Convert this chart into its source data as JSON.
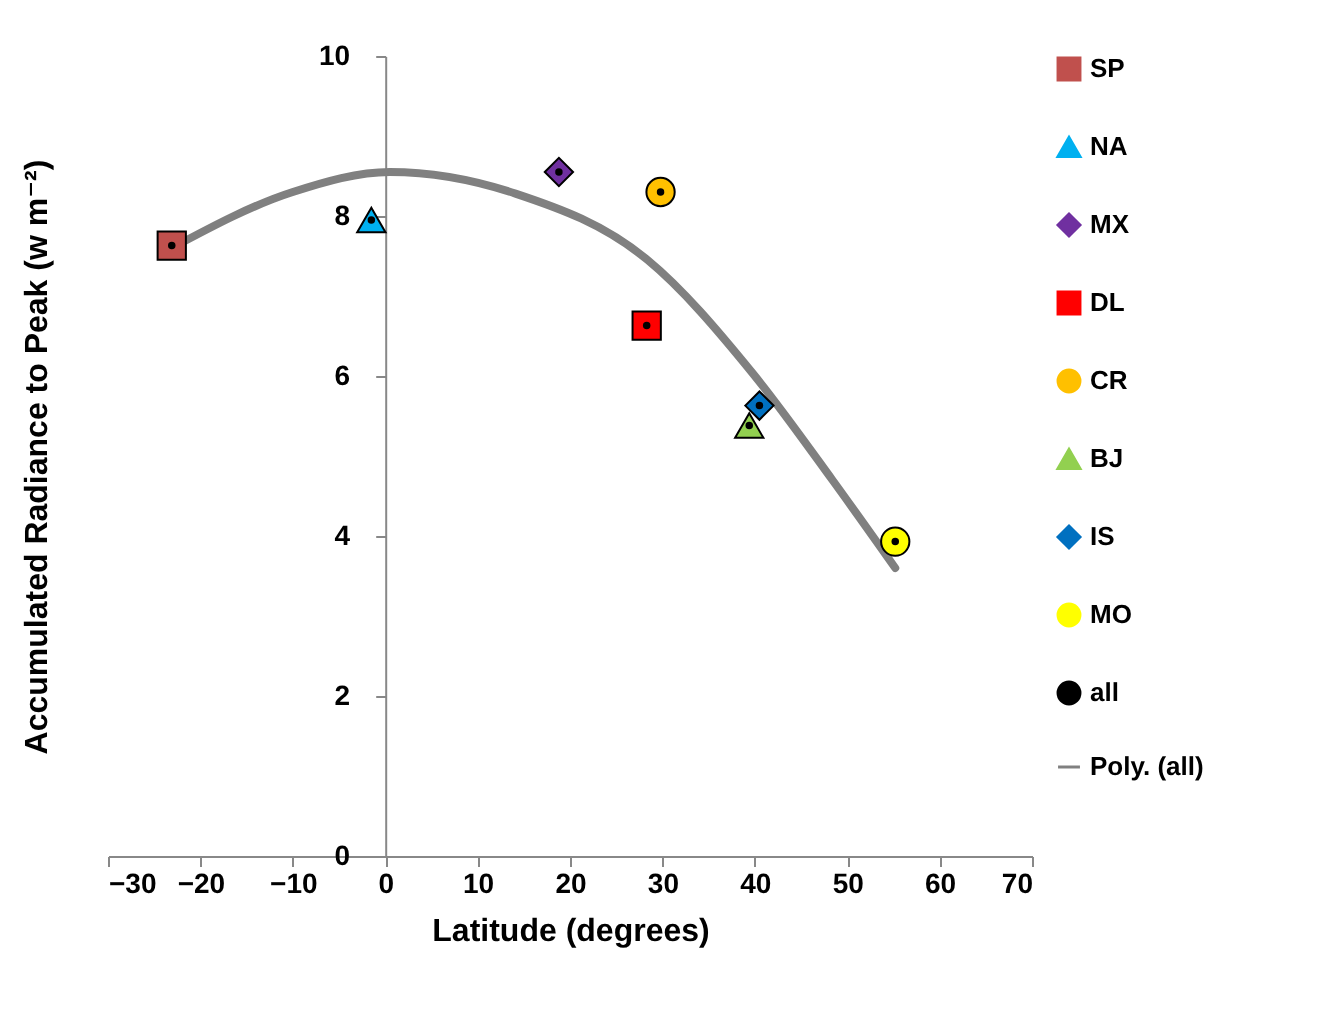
{
  "chart_data": {
    "type": "scatter",
    "xlabel": "Latitude (degrees)",
    "ylabel": "Accumulated Radiance to Peak (w m⁻²)",
    "xlim": [
      -30,
      70
    ],
    "xticks": [
      -30,
      -20,
      -10,
      0,
      10,
      20,
      30,
      40,
      50,
      60,
      70
    ],
    "ylim": [
      0,
      10
    ],
    "yticks": [
      0,
      2,
      4,
      6,
      8,
      10
    ],
    "grid": false,
    "legend": "right",
    "series": [
      {
        "name": "SP",
        "color": "#c0504d",
        "marker": "square",
        "x": [
          -23.1
        ],
        "values": [
          7.63
        ]
      },
      {
        "name": "NA",
        "color": "#00b0f0",
        "marker": "triangle",
        "x": [
          -1.5
        ],
        "values": [
          7.95
        ]
      },
      {
        "name": "MX",
        "color": "#7030a0",
        "marker": "diamond",
        "x": [
          18.8
        ],
        "values": [
          8.55
        ]
      },
      {
        "name": "DL",
        "color": "#ff0000",
        "marker": "square",
        "x": [
          28.3
        ],
        "values": [
          6.63
        ]
      },
      {
        "name": "CR",
        "color": "#ffc000",
        "marker": "circle",
        "x": [
          29.8
        ],
        "values": [
          8.3
        ]
      },
      {
        "name": "BJ",
        "color": "#92d050",
        "marker": "triangle",
        "x": [
          39.4
        ],
        "values": [
          5.38
        ]
      },
      {
        "name": "IS",
        "color": "#0070c0",
        "marker": "diamond",
        "x": [
          40.5
        ],
        "values": [
          5.63
        ]
      },
      {
        "name": "MO",
        "color": "#ffff00",
        "marker": "circle",
        "x": [
          55.2
        ],
        "values": [
          3.93
        ]
      },
      {
        "name": "all",
        "color": "#000000",
        "marker": "circle",
        "x": [
          -23.1,
          -1.5,
          18.8,
          28.3,
          29.8,
          39.4,
          40.5,
          55.2
        ],
        "values": [
          7.63,
          7.95,
          8.55,
          6.63,
          8.3,
          5.38,
          5.63,
          3.93
        ]
      },
      {
        "name": "Poly. (all)",
        "type": "line",
        "color": "#808080",
        "marker": "none",
        "x": [
          -23.1,
          -10,
          0.5,
          14.1,
          28.4,
          39.8,
          48.4,
          55.2
        ],
        "values": [
          7.6,
          8.3,
          8.55,
          8.28,
          7.45,
          6.03,
          4.7,
          3.6
        ]
      }
    ]
  }
}
